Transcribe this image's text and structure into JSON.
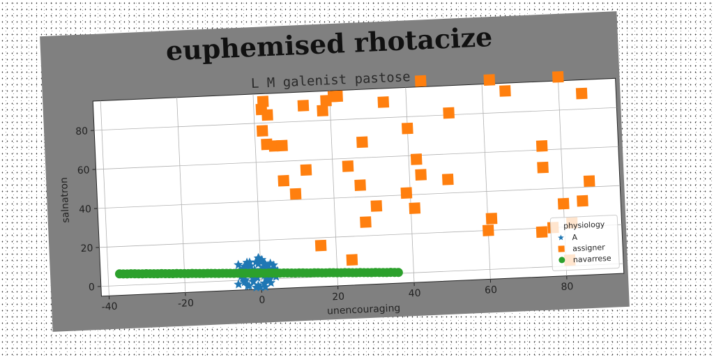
{
  "chart_data": {
    "type": "scatter",
    "title": "euphemised rhotacize",
    "subtitle": "L M galenist pastose",
    "xlabel": "unencouraging",
    "ylabel": "salnatron",
    "xlim": [
      -42,
      95
    ],
    "ylim": [
      -5,
      95
    ],
    "xticks": [
      -40,
      -20,
      0,
      20,
      40,
      60,
      80
    ],
    "yticks": [
      0,
      20,
      40,
      60,
      80
    ],
    "grid": true,
    "legend": {
      "title": "physiology",
      "position": "bottom-right"
    },
    "series": [
      {
        "name": "A",
        "marker": "star",
        "color": "#1f77b4",
        "x": [
          -6.5,
          -5.8,
          -5.2,
          -4.6,
          -4.1,
          -3.5,
          -3.0,
          -2.6,
          -2.1,
          -1.6,
          -1.1,
          -0.6,
          -0.1,
          0.4,
          0.9,
          1.4,
          1.9,
          2.4,
          2.9,
          3.4,
          3.9,
          4.4,
          -6.0,
          -5.0,
          -4.2,
          -3.2,
          -2.2,
          -1.2,
          -0.3,
          0.6,
          1.6,
          2.6,
          3.6,
          -5.5,
          -4.4,
          -3.3,
          -2.4,
          -1.4,
          -0.4,
          0.5,
          1.5,
          2.5,
          3.5,
          -4.8,
          -3.8,
          -2.8,
          -1.8,
          -0.8,
          0.2,
          1.2,
          2.2,
          3.2,
          -3.6,
          -2.0,
          -0.5,
          1.0,
          2.0,
          -1.0,
          0.0,
          0.8
        ],
        "y": [
          4,
          8,
          2,
          6,
          0,
          9,
          3,
          7,
          -1,
          5,
          1,
          8,
          4,
          10,
          2,
          6,
          -1,
          5,
          3,
          7,
          1,
          4,
          -2,
          3,
          7,
          -3,
          1,
          9,
          -4,
          6,
          0,
          8,
          2,
          5,
          -1,
          8,
          4,
          -4,
          11,
          3,
          7,
          -2,
          5,
          1,
          6,
          9,
          2,
          -3,
          5,
          8,
          0,
          4,
          -3,
          3,
          11,
          -4,
          7,
          1,
          9,
          -2
        ],
        "note_x_range": "visual spread around 0"
      },
      {
        "name": "assigner",
        "marker": "square",
        "color": "#ff7f0e",
        "x": [
          2,
          2.5,
          3.5,
          2,
          3,
          5,
          7,
          7,
          10,
          13,
          13,
          16,
          18,
          19,
          21,
          22,
          24,
          24,
          27,
          28,
          28,
          31,
          34,
          39,
          40,
          41,
          42,
          43,
          44,
          50,
          51,
          60,
          61,
          62,
          66,
          74,
          75,
          75,
          77,
          80,
          80,
          81,
          82,
          85,
          86,
          87
        ],
        "y": [
          87,
          91,
          84,
          76,
          69,
          68,
          68,
          50,
          43,
          55,
          88,
          16,
          85,
          90,
          92,
          92,
          56,
          8,
          46,
          27,
          68,
          35,
          88,
          41,
          74,
          33,
          58,
          50,
          98,
          47,
          81,
          20,
          26,
          97,
          91,
          18,
          62,
          51,
          20,
          32,
          97,
          3,
          22,
          33,
          88,
          43
        ]
      },
      {
        "name": "navarrese",
        "marker": "circle",
        "color": "#2ca02c",
        "x": [
          -37,
          -36,
          -35,
          -34,
          -33,
          -32,
          -31,
          -30,
          -29,
          -28,
          -27,
          -26,
          -25,
          -24,
          -23,
          -22,
          -21,
          -20,
          -19,
          -18,
          -17,
          -16,
          -15,
          -14,
          -13,
          -12,
          -11,
          -10,
          -9,
          -8,
          -7,
          -6,
          -5,
          -4,
          -3,
          -2,
          -1,
          0,
          1,
          2,
          3,
          4,
          5,
          6,
          7,
          8,
          9,
          10,
          11,
          12,
          13,
          14,
          15,
          16,
          17,
          18,
          19,
          20,
          21,
          22,
          23,
          24,
          25,
          26,
          27,
          28,
          29,
          30,
          31,
          32,
          33,
          34,
          35,
          36
        ],
        "y": [
          6.0,
          5.9,
          5.8,
          5.8,
          5.7,
          5.6,
          5.5,
          5.5,
          5.4,
          5.3,
          5.2,
          5.2,
          5.1,
          5.0,
          4.9,
          4.9,
          4.8,
          4.7,
          4.6,
          4.6,
          4.5,
          4.4,
          4.3,
          4.3,
          4.2,
          4.1,
          4.0,
          4.0,
          3.9,
          3.8,
          3.7,
          3.7,
          3.6,
          3.5,
          3.4,
          3.4,
          3.3,
          3.2,
          3.1,
          3.1,
          3.0,
          2.9,
          2.8,
          2.8,
          2.7,
          2.6,
          2.5,
          2.5,
          2.4,
          2.3,
          2.2,
          2.2,
          2.1,
          2.0,
          1.9,
          1.9,
          1.8,
          1.7,
          1.6,
          1.6,
          1.5,
          1.4,
          1.3,
          1.3,
          1.2,
          1.1,
          1.0,
          1.0,
          0.9,
          0.8,
          0.7,
          0.7,
          0.6,
          0.5
        ]
      }
    ]
  }
}
